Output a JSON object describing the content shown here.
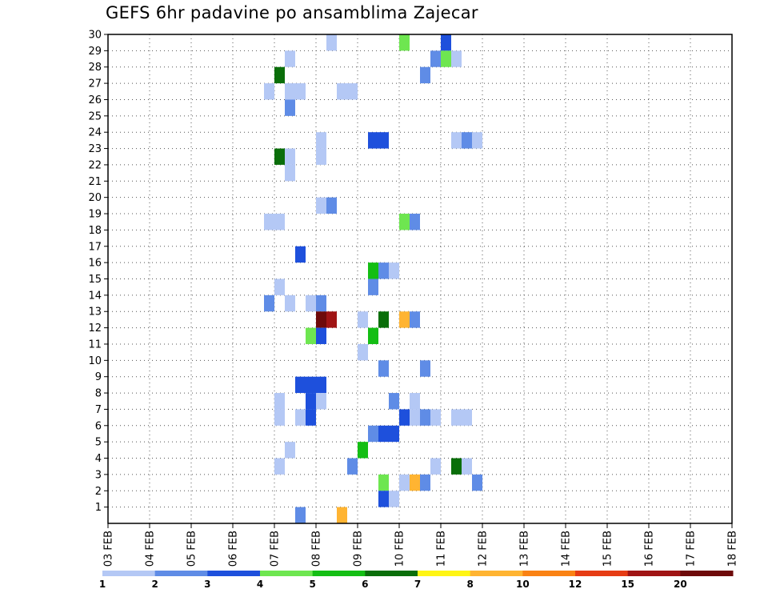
{
  "title": "GEFS 6hr padavine po ansamblima Zajecar",
  "chart_data": {
    "type": "heatmap",
    "title": "GEFS 6hr padavine po ansamblima Zajecar",
    "x_tick_labels": [
      "03 FEB",
      "04 FEB",
      "05 FEB",
      "06 FEB",
      "07 FEB",
      "08 FEB",
      "09 FEB",
      "10 FEB",
      "11 FEB",
      "12 FEB",
      "13 FEB",
      "14 FEB",
      "15 FEB",
      "16 FEB",
      "17 FEB",
      "18 FEB"
    ],
    "y_tick_labels": [
      "1",
      "2",
      "3",
      "4",
      "5",
      "6",
      "7",
      "8",
      "9",
      "10",
      "11",
      "12",
      "13",
      "14",
      "15",
      "16",
      "17",
      "18",
      "19",
      "20",
      "21",
      "22",
      "23",
      "24",
      "25",
      "26",
      "27",
      "28",
      "29",
      "30"
    ],
    "x_step_note": "x index = 6-hour step counted from 03 FEB (4 steps per day)",
    "y_range": [
      0,
      30
    ],
    "grid": true,
    "legend_placement": "bottom",
    "colorbar": {
      "labels": [
        "1",
        "2",
        "3",
        "4",
        "5",
        "6",
        "7",
        "8",
        "10",
        "12",
        "15",
        "20"
      ],
      "colors": [
        "#b4c8f5",
        "#5f8ce6",
        "#1e50dc",
        "#6ee650",
        "#14be14",
        "#0a6e0a",
        "#fff514",
        "#ffb432",
        "#fa8214",
        "#e63c14",
        "#a01414",
        "#6e0a0a"
      ]
    },
    "cells": [
      {
        "x": 21,
        "y": 30,
        "v": 1
      },
      {
        "x": 28,
        "y": 30,
        "v": 4
      },
      {
        "x": 32,
        "y": 30,
        "v": 3
      },
      {
        "x": 17,
        "y": 29,
        "v": 1
      },
      {
        "x": 31,
        "y": 29,
        "v": 2
      },
      {
        "x": 32,
        "y": 29,
        "v": 4
      },
      {
        "x": 33,
        "y": 29,
        "v": 1
      },
      {
        "x": 16,
        "y": 28,
        "v": 6
      },
      {
        "x": 30,
        "y": 28,
        "v": 2
      },
      {
        "x": 15,
        "y": 27,
        "v": 1
      },
      {
        "x": 17,
        "y": 27,
        "v": 1
      },
      {
        "x": 18,
        "y": 27,
        "v": 1
      },
      {
        "x": 22,
        "y": 27,
        "v": 1
      },
      {
        "x": 23,
        "y": 27,
        "v": 1
      },
      {
        "x": 17,
        "y": 26,
        "v": 2
      },
      {
        "x": 20,
        "y": 24,
        "v": 1
      },
      {
        "x": 25,
        "y": 24,
        "v": 3
      },
      {
        "x": 26,
        "y": 24,
        "v": 3
      },
      {
        "x": 33,
        "y": 24,
        "v": 1
      },
      {
        "x": 34,
        "y": 24,
        "v": 2
      },
      {
        "x": 35,
        "y": 24,
        "v": 1
      },
      {
        "x": 16,
        "y": 23,
        "v": 6
      },
      {
        "x": 17,
        "y": 23,
        "v": 1
      },
      {
        "x": 20,
        "y": 23,
        "v": 1
      },
      {
        "x": 17,
        "y": 22,
        "v": 1
      },
      {
        "x": 20,
        "y": 20,
        "v": 1
      },
      {
        "x": 21,
        "y": 20,
        "v": 2
      },
      {
        "x": 15,
        "y": 19,
        "v": 1
      },
      {
        "x": 16,
        "y": 19,
        "v": 1
      },
      {
        "x": 28,
        "y": 19,
        "v": 4
      },
      {
        "x": 29,
        "y": 19,
        "v": 2
      },
      {
        "x": 18,
        "y": 17,
        "v": 3
      },
      {
        "x": 25,
        "y": 16,
        "v": 5
      },
      {
        "x": 26,
        "y": 16,
        "v": 2
      },
      {
        "x": 27,
        "y": 16,
        "v": 1
      },
      {
        "x": 16,
        "y": 15,
        "v": 1
      },
      {
        "x": 25,
        "y": 15,
        "v": 2
      },
      {
        "x": 15,
        "y": 14,
        "v": 2
      },
      {
        "x": 17,
        "y": 14,
        "v": 1
      },
      {
        "x": 19,
        "y": 14,
        "v": 1
      },
      {
        "x": 20,
        "y": 14,
        "v": 2
      },
      {
        "x": 20,
        "y": 13,
        "v": 20
      },
      {
        "x": 21,
        "y": 13,
        "v": 15
      },
      {
        "x": 24,
        "y": 13,
        "v": 1
      },
      {
        "x": 26,
        "y": 13,
        "v": 6
      },
      {
        "x": 28,
        "y": 13,
        "v": 8
      },
      {
        "x": 29,
        "y": 13,
        "v": 2
      },
      {
        "x": 19,
        "y": 12,
        "v": 4
      },
      {
        "x": 20,
        "y": 12,
        "v": 3
      },
      {
        "x": 25,
        "y": 12,
        "v": 5
      },
      {
        "x": 24,
        "y": 11,
        "v": 1
      },
      {
        "x": 26,
        "y": 10,
        "v": 2
      },
      {
        "x": 30,
        "y": 10,
        "v": 2
      },
      {
        "x": 18,
        "y": 9,
        "v": 3
      },
      {
        "x": 19,
        "y": 9,
        "v": 3
      },
      {
        "x": 20,
        "y": 9,
        "v": 3
      },
      {
        "x": 16,
        "y": 8,
        "v": 1
      },
      {
        "x": 19,
        "y": 8,
        "v": 3
      },
      {
        "x": 20,
        "y": 8,
        "v": 1
      },
      {
        "x": 27,
        "y": 8,
        "v": 2
      },
      {
        "x": 29,
        "y": 8,
        "v": 1
      },
      {
        "x": 16,
        "y": 7,
        "v": 1
      },
      {
        "x": 18,
        "y": 7,
        "v": 1
      },
      {
        "x": 19,
        "y": 7,
        "v": 3
      },
      {
        "x": 28,
        "y": 7,
        "v": 3
      },
      {
        "x": 29,
        "y": 7,
        "v": 1
      },
      {
        "x": 30,
        "y": 7,
        "v": 2
      },
      {
        "x": 31,
        "y": 7,
        "v": 1
      },
      {
        "x": 33,
        "y": 7,
        "v": 1
      },
      {
        "x": 34,
        "y": 7,
        "v": 1
      },
      {
        "x": 25,
        "y": 6,
        "v": 2
      },
      {
        "x": 26,
        "y": 6,
        "v": 3
      },
      {
        "x": 27,
        "y": 6,
        "v": 3
      },
      {
        "x": 17,
        "y": 5,
        "v": 1
      },
      {
        "x": 24,
        "y": 5,
        "v": 5
      },
      {
        "x": 16,
        "y": 4,
        "v": 1
      },
      {
        "x": 23,
        "y": 4,
        "v": 2
      },
      {
        "x": 31,
        "y": 4,
        "v": 1
      },
      {
        "x": 33,
        "y": 4,
        "v": 6
      },
      {
        "x": 34,
        "y": 4,
        "v": 1
      },
      {
        "x": 26,
        "y": 3,
        "v": 4
      },
      {
        "x": 28,
        "y": 3,
        "v": 1
      },
      {
        "x": 29,
        "y": 3,
        "v": 8
      },
      {
        "x": 30,
        "y": 3,
        "v": 2
      },
      {
        "x": 35,
        "y": 3,
        "v": 2
      },
      {
        "x": 26,
        "y": 2,
        "v": 3
      },
      {
        "x": 27,
        "y": 2,
        "v": 1
      },
      {
        "x": 18,
        "y": 1,
        "v": 2
      },
      {
        "x": 22,
        "y": 1,
        "v": 8
      }
    ]
  }
}
